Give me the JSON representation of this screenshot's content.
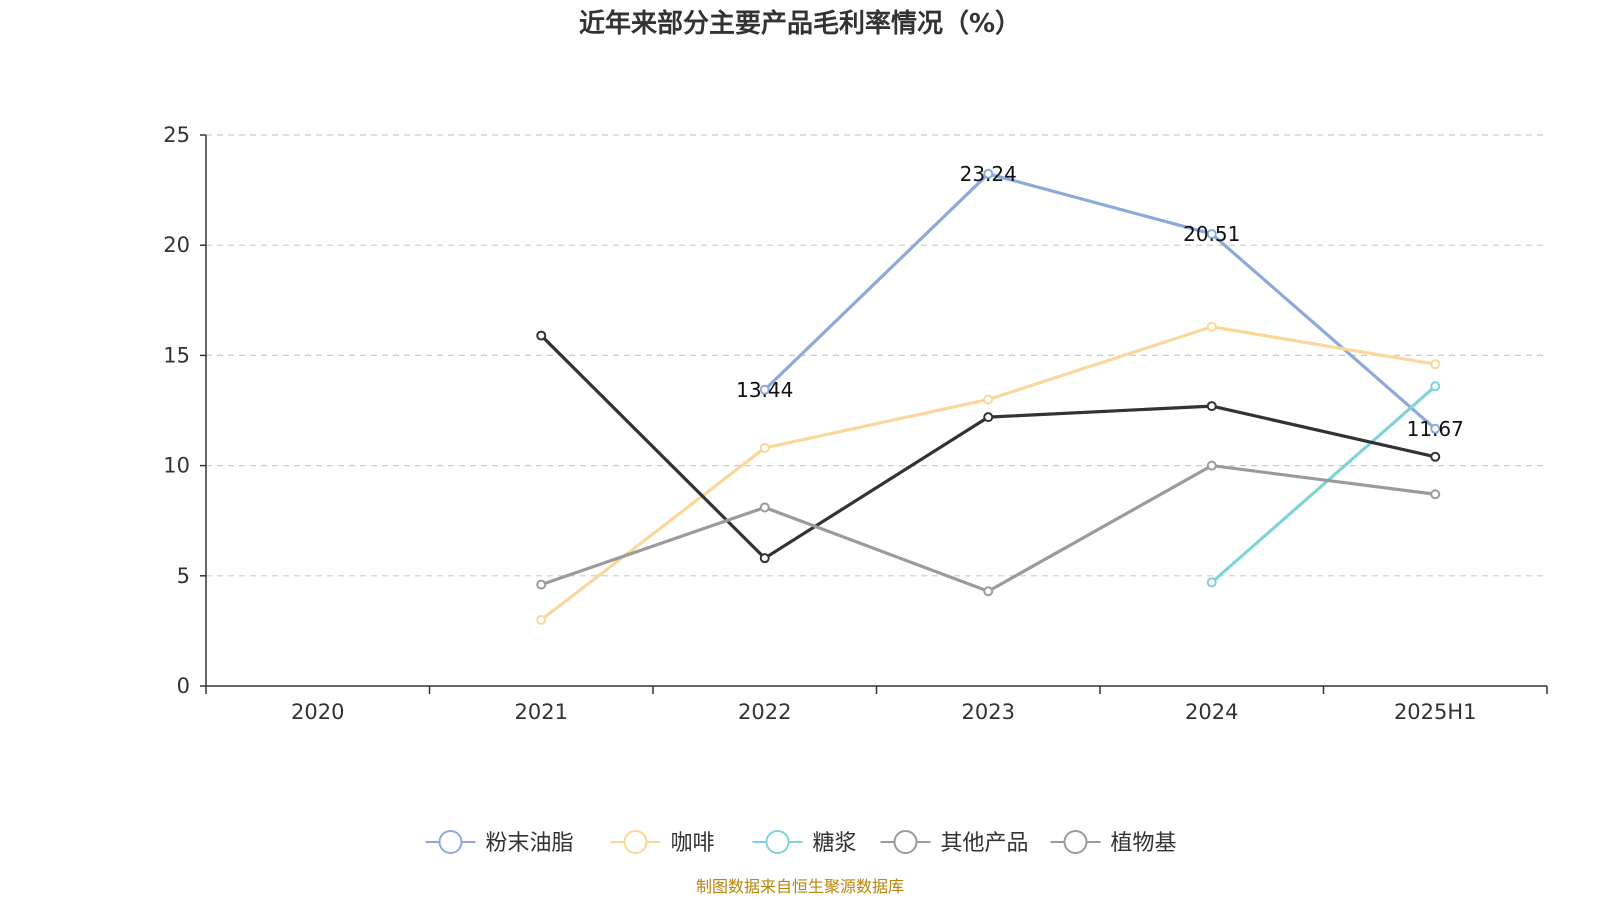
{
  "chart_data": {
    "type": "line",
    "title": "近年来部分主要产品毛利率情况（%）",
    "xlabel": "",
    "ylabel": "",
    "categories": [
      "2020",
      "2021",
      "2022",
      "2023",
      "2024",
      "2025H1"
    ],
    "ylim": [
      0,
      25
    ],
    "yticks": [
      0,
      5,
      10,
      15,
      20,
      25
    ],
    "grid": "horizontal dashed",
    "legend_position": "bottom",
    "series": [
      {
        "name": "粉末油脂",
        "color": "#8eaad8",
        "values": [
          null,
          null,
          13.44,
          23.24,
          20.51,
          11.67
        ],
        "labels": [
          null,
          null,
          "13.44",
          "23.24",
          "20.51",
          "11.67"
        ]
      },
      {
        "name": "咖啡",
        "color": "#f9d89a",
        "values": [
          null,
          3.0,
          10.8,
          13.0,
          16.3,
          14.6
        ],
        "labels": [
          null,
          null,
          null,
          null,
          null,
          null
        ]
      },
      {
        "name": "糖浆",
        "color": "#80d4d7",
        "values": [
          null,
          null,
          null,
          null,
          4.7,
          13.6
        ],
        "labels": [
          null,
          null,
          null,
          null,
          null,
          null
        ]
      },
      {
        "name": "其他产品",
        "color": "#333333",
        "values": [
          null,
          15.9,
          5.8,
          12.2,
          12.7,
          10.4
        ],
        "labels": [
          null,
          null,
          null,
          null,
          null,
          null
        ]
      },
      {
        "name": "植物基",
        "color": "#9b9b9b",
        "values": [
          null,
          4.6,
          8.1,
          4.3,
          10.0,
          8.7
        ],
        "labels": [
          null,
          null,
          null,
          null,
          null,
          null
        ]
      }
    ],
    "legend_icons": [
      "#8eaad8",
      "#f9d89a",
      "#80d4d7",
      "#9b9b9b",
      "#9b9b9b"
    ]
  },
  "source": "制图数据来自恒生聚源数据库"
}
